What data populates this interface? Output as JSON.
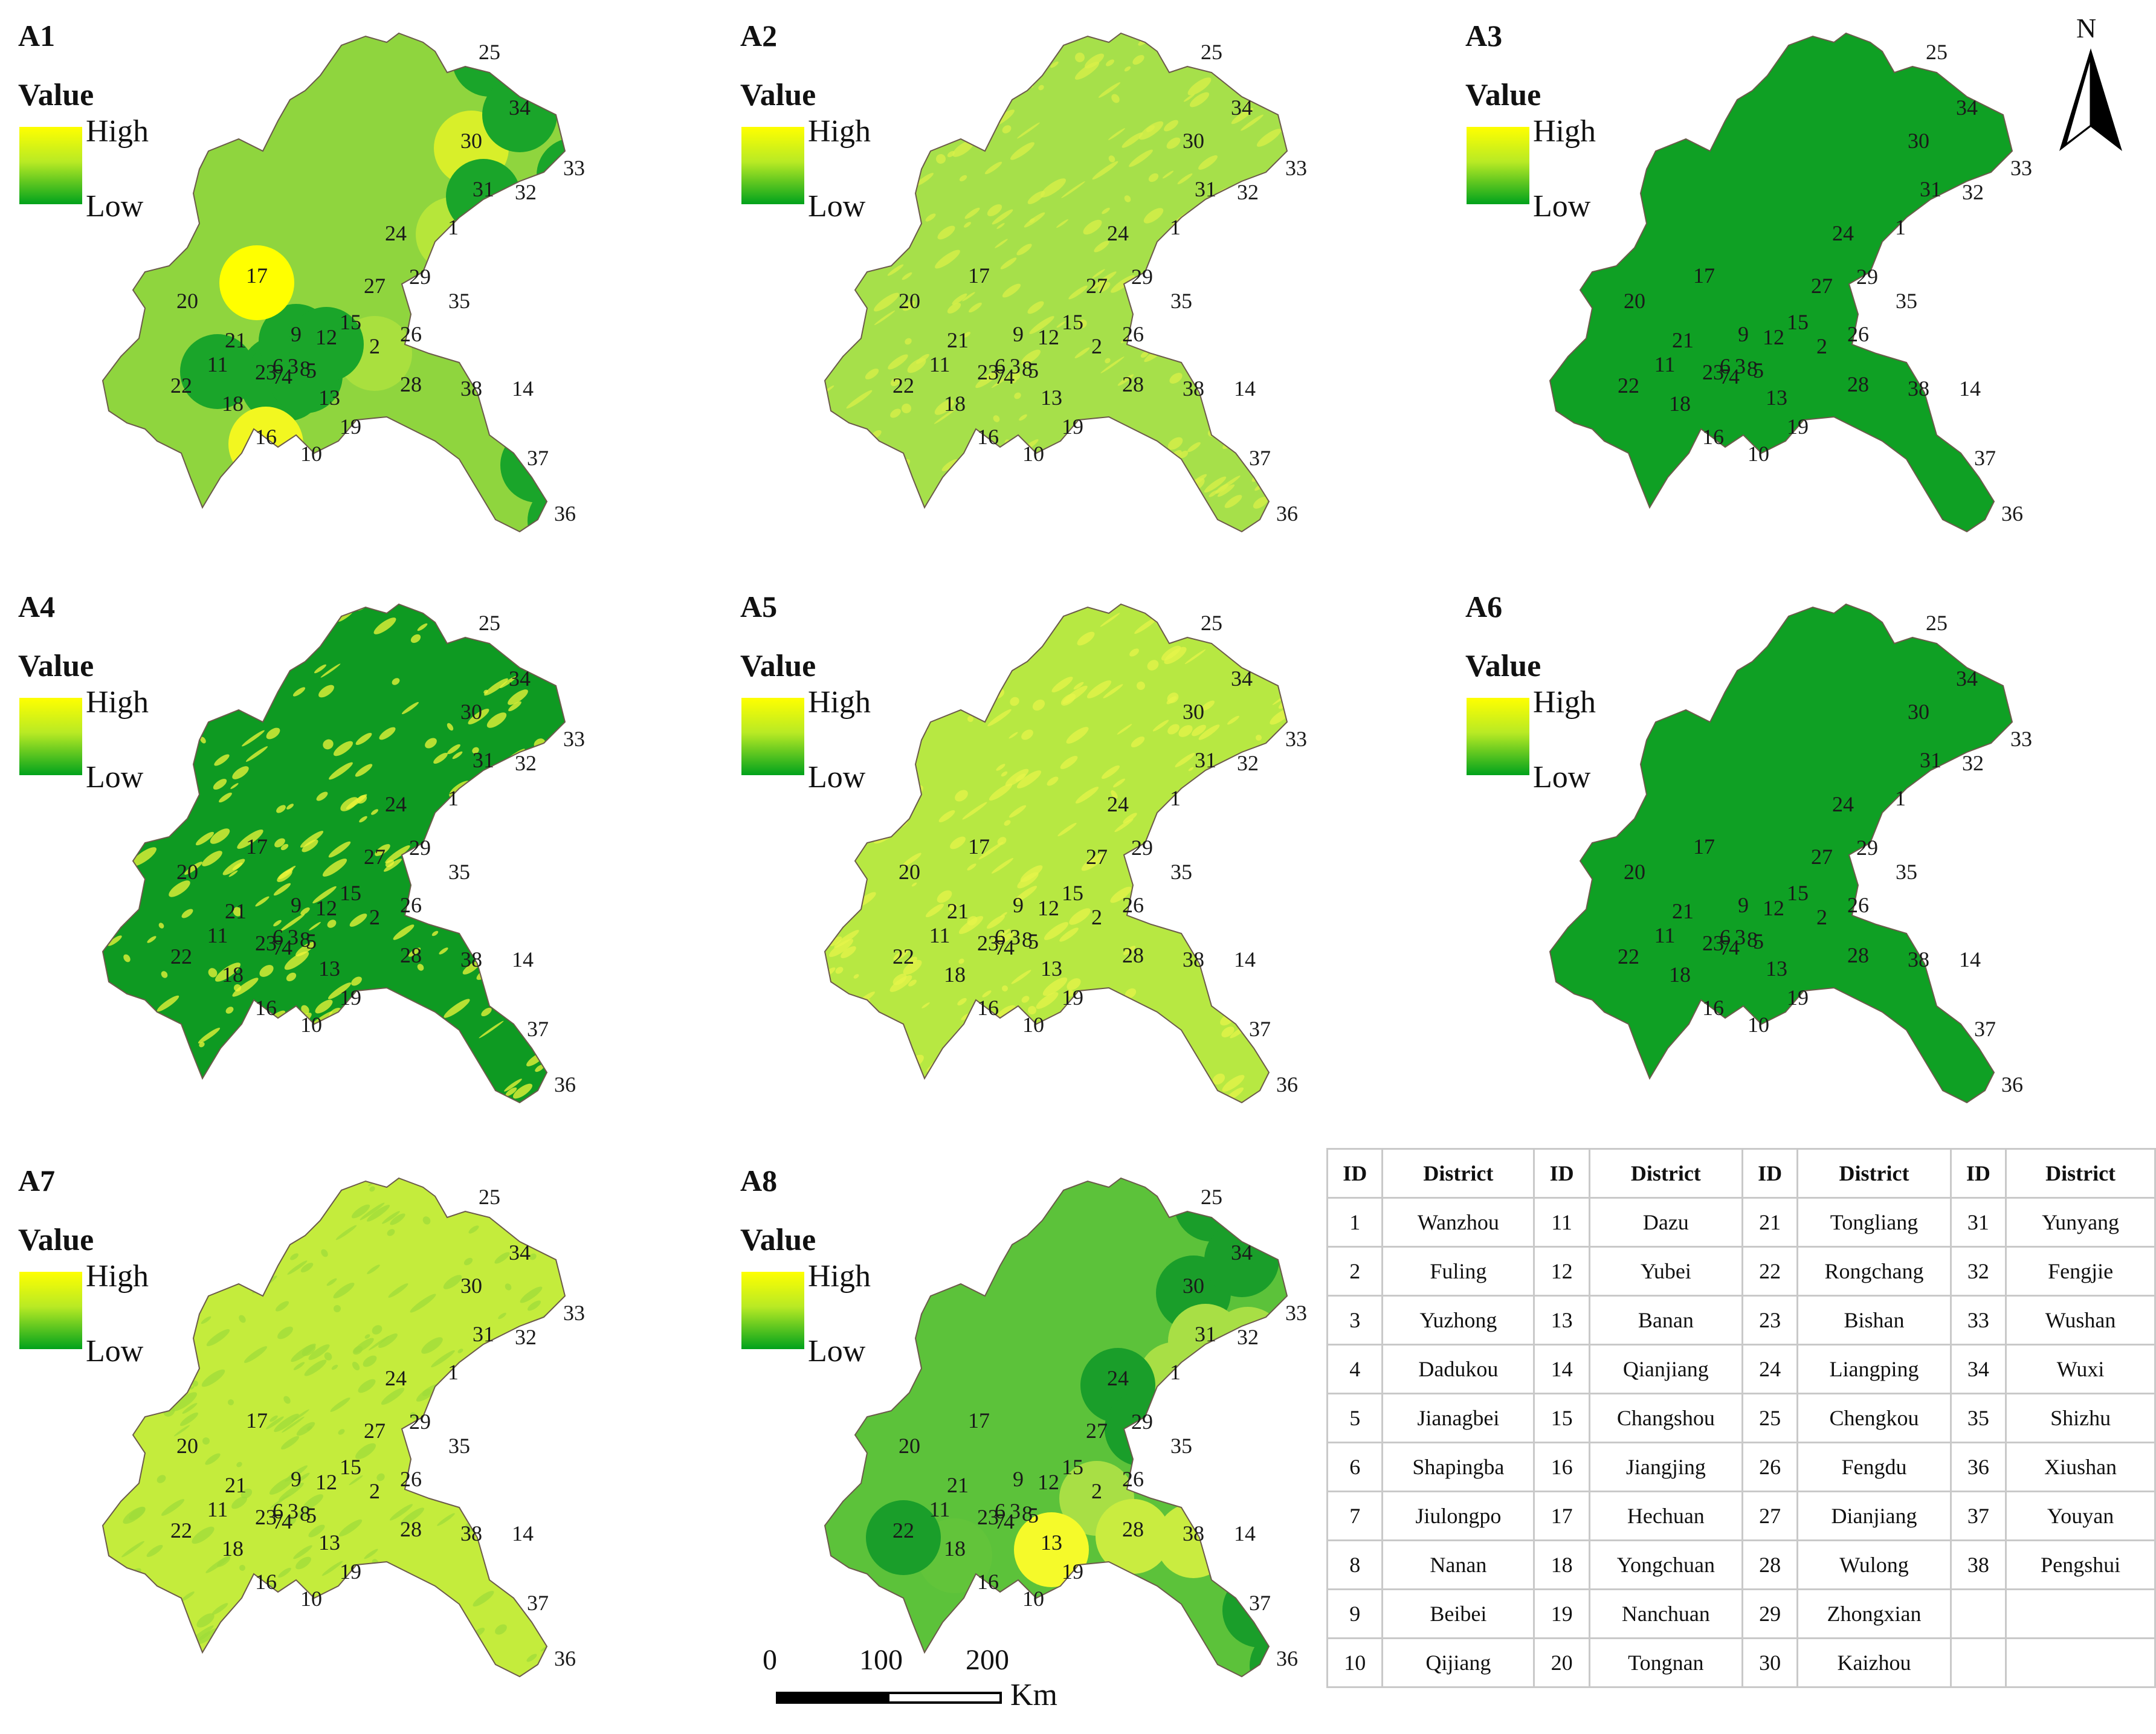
{
  "legend": {
    "title": "Value",
    "high": "High",
    "low": "Low"
  },
  "north_arrow": {
    "label": "N"
  },
  "scale_bar": {
    "ticks": [
      "0",
      "100",
      "200"
    ],
    "unit": "Km"
  },
  "palette": {
    "high": "#ffff00",
    "mid": "#8ed43a",
    "low": "#00a21c",
    "dark": "#0a8a1a",
    "border": "#7a5a4a"
  },
  "panels": [
    {
      "id": "A1",
      "title": "A1"
    },
    {
      "id": "A2",
      "title": "A2"
    },
    {
      "id": "A3",
      "title": "A3"
    },
    {
      "id": "A4",
      "title": "A4"
    },
    {
      "id": "A5",
      "title": "A5"
    },
    {
      "id": "A6",
      "title": "A6"
    },
    {
      "id": "A7",
      "title": "A7"
    },
    {
      "id": "A8",
      "title": "A8"
    }
  ],
  "map_labels": [
    "1",
    "2",
    "3",
    "4",
    "5",
    "6",
    "7",
    "8",
    "9",
    "10",
    "11",
    "12",
    "13",
    "14",
    "15",
    "16",
    "17",
    "18",
    "19",
    "20",
    "21",
    "22",
    "23",
    "24",
    "25",
    "26",
    "27",
    "28",
    "29",
    "30",
    "31",
    "32",
    "33",
    "34",
    "35",
    "36",
    "37",
    "38"
  ],
  "district_table": {
    "headers": [
      "ID",
      "District",
      "ID",
      "District",
      "ID",
      "District",
      "ID",
      "District"
    ],
    "rows": [
      [
        "1",
        "Wanzhou",
        "11",
        "Dazu",
        "21",
        "Tongliang",
        "31",
        "Yunyang"
      ],
      [
        "2",
        "Fuling",
        "12",
        "Yubei",
        "22",
        "Rongchang",
        "32",
        "Fengjie"
      ],
      [
        "3",
        "Yuzhong",
        "13",
        "Banan",
        "23",
        "Bishan",
        "33",
        "Wushan"
      ],
      [
        "4",
        "Dadukou",
        "14",
        "Qianjiang",
        "24",
        "Liangping",
        "34",
        "Wuxi"
      ],
      [
        "5",
        "Jianagbei",
        "15",
        "Changshou",
        "25",
        "Chengkou",
        "35",
        "Shizhu"
      ],
      [
        "6",
        "Shapingba",
        "16",
        "Jiangjing",
        "26",
        "Fengdu",
        "36",
        "Xiushan"
      ],
      [
        "7",
        "Jiulongpo",
        "17",
        "Hechuan",
        "27",
        "Dianjiang",
        "37",
        "Youyan"
      ],
      [
        "8",
        "Nanan",
        "18",
        "Yongchuan",
        "28",
        "Wulong",
        "38",
        "Pengshui"
      ],
      [
        "9",
        "Beibei",
        "19",
        "Nanchuan",
        "29",
        "Zhongxian",
        "",
        ""
      ],
      [
        "10",
        "Qijiang",
        "20",
        "Tongnan",
        "30",
        "Kaizhou",
        "",
        ""
      ]
    ]
  }
}
